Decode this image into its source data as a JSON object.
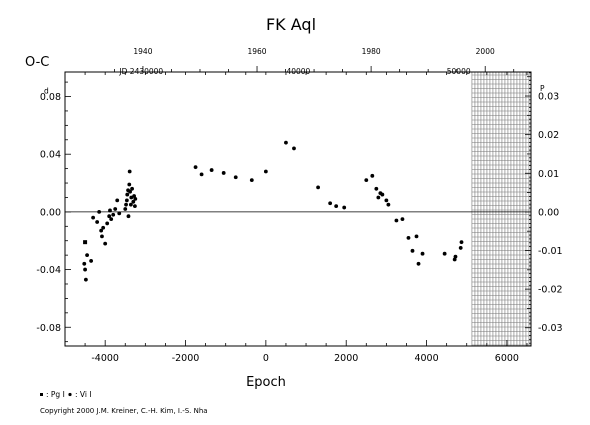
{
  "chart_data": {
    "type": "scatter",
    "title": "FK Aql",
    "xlabel": "Epoch",
    "ylabel": "O-C",
    "xlim": [
      -5000,
      6600
    ],
    "ylim": [
      -0.093,
      0.097
    ],
    "x_ticks": [
      "-4000",
      "-2000",
      "0",
      "2000",
      "4000",
      "6000"
    ],
    "x_tick_values": [
      -4000,
      -2000,
      0,
      2000,
      4000,
      6000
    ],
    "y_ticks_left": [
      "0.08",
      "0.04",
      "0.00",
      "-0.04",
      "-0.08"
    ],
    "y_tick_values_left": [
      0.08,
      0.04,
      0.0,
      -0.04,
      -0.08
    ],
    "y_left_superscript": "d",
    "y_ticks_right": [
      "0.03",
      "0.02",
      "0.01",
      "0.00",
      "-0.01",
      "-0.02",
      "-0.03"
    ],
    "y_tick_values_right": [
      0.03,
      0.02,
      0.01,
      0.0,
      -0.01,
      -0.02,
      -0.03
    ],
    "y_right_superscript": "P",
    "y_right_scale": 0.3734,
    "top_year_ticks": [
      "1940",
      "1960",
      "1980",
      "2000"
    ],
    "top_year_epochs": [
      -3060,
      -220,
      2620,
      5460
    ],
    "jd_labels": [
      "JD 2430000",
      "40000",
      "50000"
    ],
    "jd_label_epochs": [
      -3100,
      810,
      4800
    ],
    "zero_line": 0.0,
    "future_region_start": 5130,
    "legend": [
      {
        "symbol": "square",
        "label": ": Pg I"
      },
      {
        "symbol": "circle",
        "label": ": Vi I"
      }
    ],
    "series": [
      {
        "name": "Pg I",
        "marker": "square",
        "points": [
          [
            -4500,
            -0.021
          ]
        ]
      },
      {
        "name": "Vi I",
        "marker": "circle",
        "points": [
          [
            -4520,
            -0.036
          ],
          [
            -4500,
            -0.04
          ],
          [
            -4480,
            -0.047
          ],
          [
            -4450,
            -0.03
          ],
          [
            -4350,
            -0.034
          ],
          [
            -4300,
            -0.004
          ],
          [
            -4200,
            -0.007
          ],
          [
            -4150,
            0.0
          ],
          [
            -4100,
            -0.013
          ],
          [
            -4080,
            -0.017
          ],
          [
            -4050,
            -0.011
          ],
          [
            -4000,
            -0.022
          ],
          [
            -3950,
            -0.008
          ],
          [
            -3900,
            -0.003
          ],
          [
            -3880,
            0.001
          ],
          [
            -3850,
            -0.005
          ],
          [
            -3800,
            -0.002
          ],
          [
            -3750,
            0.002
          ],
          [
            -3700,
            0.008
          ],
          [
            -3650,
            -0.001
          ],
          [
            -3500,
            0.002
          ],
          [
            -3480,
            0.005
          ],
          [
            -3460,
            0.008
          ],
          [
            -3450,
            0.012
          ],
          [
            -3430,
            0.015
          ],
          [
            -3420,
            -0.003
          ],
          [
            -3400,
            0.019
          ],
          [
            -3390,
            0.028
          ],
          [
            -3380,
            0.014
          ],
          [
            -3360,
            0.005
          ],
          [
            -3350,
            0.01
          ],
          [
            -3330,
            0.016
          ],
          [
            -3300,
            0.007
          ],
          [
            -3280,
            0.011
          ],
          [
            -3260,
            0.004
          ],
          [
            -3250,
            0.009
          ],
          [
            -1750,
            0.031
          ],
          [
            -1600,
            0.026
          ],
          [
            -1350,
            0.029
          ],
          [
            -1050,
            0.027
          ],
          [
            -750,
            0.024
          ],
          [
            -350,
            0.022
          ],
          [
            0,
            0.028
          ],
          [
            500,
            0.048
          ],
          [
            700,
            0.044
          ],
          [
            1300,
            0.017
          ],
          [
            1600,
            0.006
          ],
          [
            1750,
            0.004
          ],
          [
            1950,
            0.003
          ],
          [
            2500,
            0.022
          ],
          [
            2650,
            0.025
          ],
          [
            2750,
            0.016
          ],
          [
            2800,
            0.01
          ],
          [
            2850,
            0.013
          ],
          [
            2900,
            0.012
          ],
          [
            3000,
            0.008
          ],
          [
            3050,
            0.005
          ],
          [
            3250,
            -0.006
          ],
          [
            3400,
            -0.005
          ],
          [
            3550,
            -0.018
          ],
          [
            3650,
            -0.027
          ],
          [
            3750,
            -0.017
          ],
          [
            3800,
            -0.036
          ],
          [
            3900,
            -0.029
          ],
          [
            4450,
            -0.029
          ],
          [
            4700,
            -0.033
          ],
          [
            4720,
            -0.031
          ],
          [
            4850,
            -0.025
          ],
          [
            4870,
            -0.021
          ]
        ]
      }
    ]
  },
  "credit": "Copyright 2000 J.M. Kreiner, C.-H. Kim, I.-S. Nha"
}
